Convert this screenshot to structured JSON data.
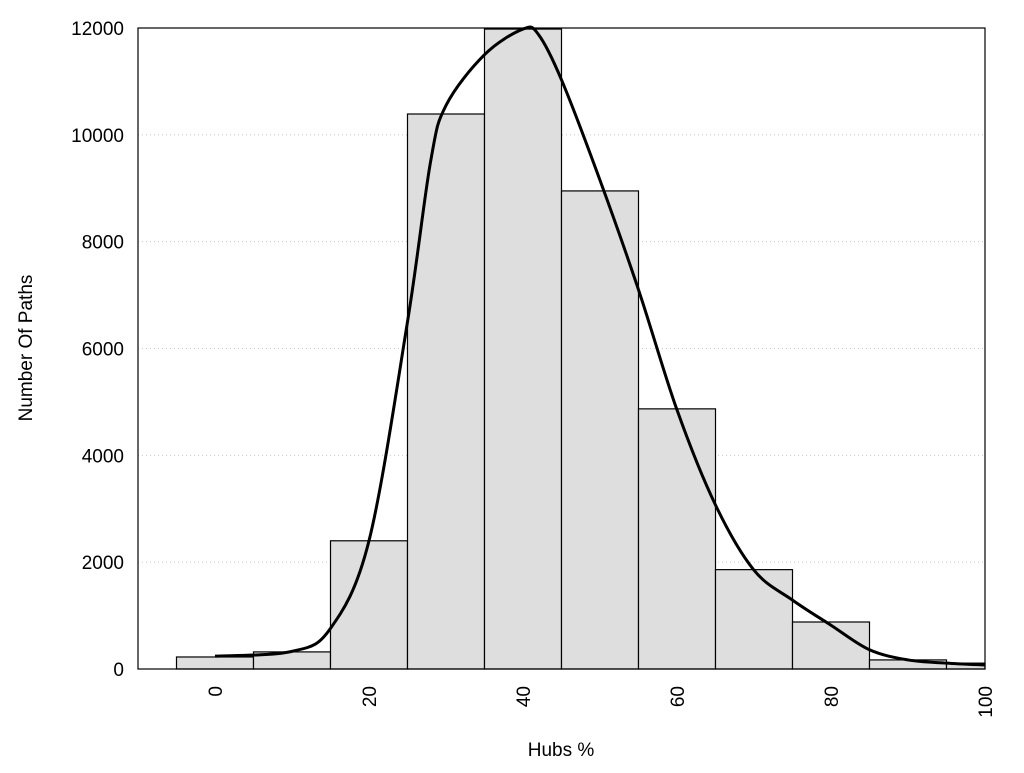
{
  "chart_data": {
    "type": "bar",
    "title": "",
    "xlabel": "Hubs %",
    "ylabel": "Number Of Paths",
    "xlim": [
      -10,
      100
    ],
    "ylim": [
      0,
      12000
    ],
    "grid": "horizontal dotted",
    "bin_width": 10,
    "x_ticks": [
      0,
      20,
      40,
      60,
      80,
      100
    ],
    "y_ticks": [
      0,
      2000,
      4000,
      6000,
      8000,
      10000,
      12000
    ],
    "bars": {
      "centers": [
        0,
        10,
        20,
        30,
        40,
        50,
        60,
        70,
        80,
        90,
        100
      ],
      "values": [
        225,
        320,
        2400,
        10390,
        11980,
        8950,
        4870,
        1860,
        880,
        170,
        110
      ]
    },
    "density_curve": {
      "x": [
        0,
        10,
        15,
        20,
        25,
        28,
        30,
        35,
        40,
        42,
        45,
        50,
        55,
        60,
        65,
        70,
        75,
        80,
        85,
        90,
        95,
        100
      ],
      "y": [
        240,
        330,
        760,
        2400,
        6500,
        9500,
        10550,
        11500,
        11980,
        11880,
        11030,
        9150,
        7100,
        4850,
        3070,
        1850,
        1290,
        820,
        360,
        170,
        110,
        75
      ]
    },
    "colors": {
      "bar_fill": "#dedede",
      "bar_stroke": "#000000",
      "curve": "#000000",
      "grid": "#c8c8c8"
    }
  }
}
